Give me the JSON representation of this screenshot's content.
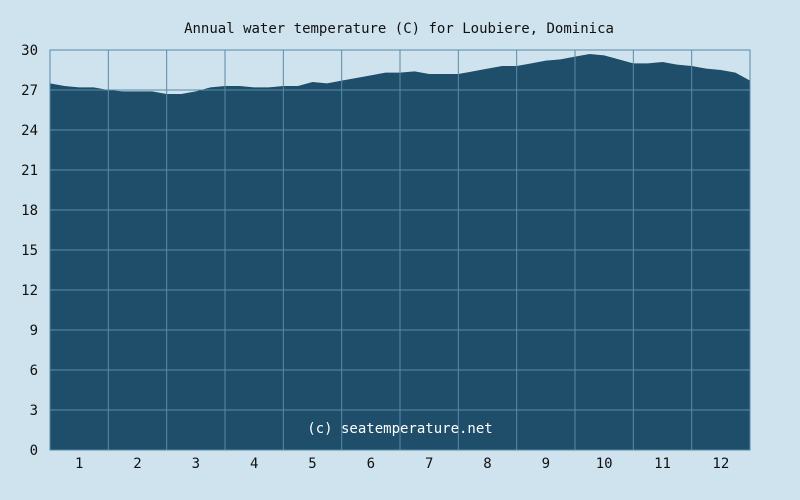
{
  "chart_data": {
    "type": "area",
    "title": "Annual water temperature (C) for Loubiere, Dominica",
    "xlabel": "",
    "ylabel": "",
    "ylim": [
      0,
      30
    ],
    "yticks": [
      0,
      3,
      6,
      9,
      12,
      15,
      18,
      21,
      24,
      27,
      30
    ],
    "categories": [
      "1",
      "2",
      "3",
      "4",
      "5",
      "6",
      "7",
      "8",
      "9",
      "10",
      "11",
      "12"
    ],
    "grid": true,
    "fill_color": "#1f4e6a",
    "series": [
      {
        "x": [
          0.0,
          0.25,
          0.5,
          0.75,
          1.0,
          1.25,
          1.5,
          1.75,
          2.0,
          2.25,
          2.5,
          2.75,
          3.0,
          3.25,
          3.5,
          3.75,
          4.0,
          4.25,
          4.5,
          4.75,
          5.0,
          5.25,
          5.5,
          5.75,
          6.0,
          6.25,
          6.5,
          6.75,
          7.0,
          7.25,
          7.5,
          7.75,
          8.0,
          8.25,
          8.5,
          8.75,
          9.0,
          9.25,
          9.5,
          9.75,
          10.0,
          10.25,
          10.5,
          10.75,
          11.0,
          11.25,
          11.5,
          11.75,
          12.0
        ],
        "values": [
          27.5,
          27.3,
          27.2,
          27.2,
          27.0,
          26.9,
          26.9,
          26.9,
          26.7,
          26.7,
          26.9,
          27.2,
          27.3,
          27.3,
          27.2,
          27.2,
          27.3,
          27.3,
          27.6,
          27.5,
          27.7,
          27.9,
          28.1,
          28.3,
          28.3,
          28.4,
          28.2,
          28.2,
          28.2,
          28.4,
          28.6,
          28.8,
          28.8,
          29.0,
          29.2,
          29.3,
          29.5,
          29.7,
          29.6,
          29.3,
          29.0,
          29.0,
          29.1,
          28.9,
          28.8,
          28.6,
          28.5,
          28.3,
          27.7
        ]
      }
    ]
  },
  "watermark": "(c) seatemperature.net",
  "colors": {
    "background": "#cfe3ee",
    "plot_fill": "#1f4e6a",
    "grid": "#5a8aa6"
  }
}
